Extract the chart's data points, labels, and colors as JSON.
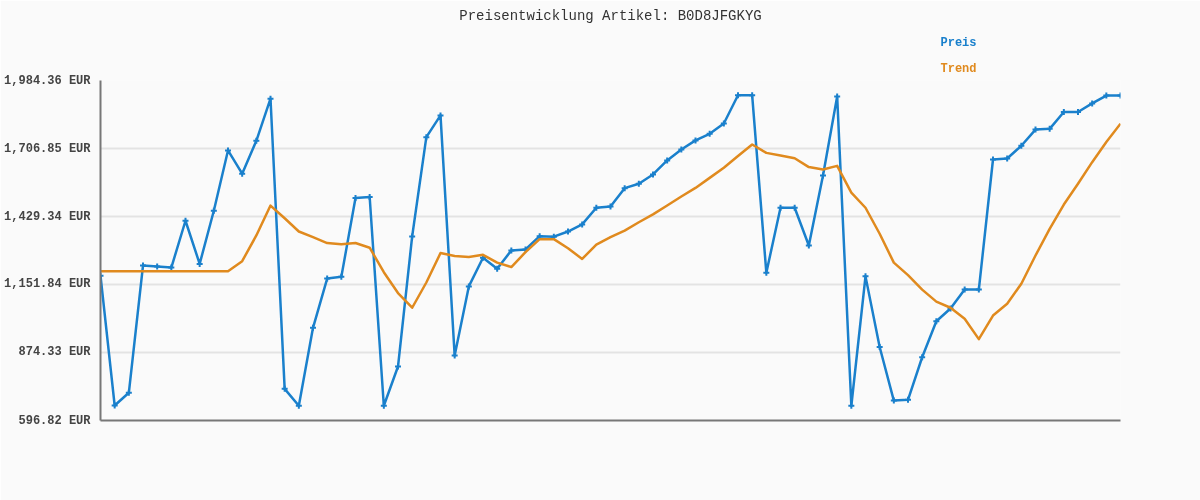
{
  "chart_data": {
    "type": "line",
    "title": "Preisentwicklung Artikel: B0D8JFGKYG",
    "categories": [
      null,
      null,
      null,
      null,
      null,
      null,
      null,
      null,
      null,
      null,
      null,
      null,
      null,
      null,
      null,
      null,
      null,
      null,
      null,
      null,
      null,
      null,
      null,
      null,
      null,
      null,
      null,
      null,
      null,
      null,
      null,
      null,
      null,
      null,
      null,
      null,
      null,
      null,
      null,
      null,
      null,
      null,
      null,
      null,
      null,
      null,
      null,
      null,
      null,
      null,
      null,
      null,
      null,
      null,
      null,
      null,
      null,
      null,
      null,
      null,
      null,
      null,
      null,
      null,
      null,
      null,
      null,
      null,
      null,
      null,
      null,
      null,
      null
    ],
    "series": [
      {
        "name": "Preis",
        "color": "#1a80cc",
        "marker": "cross",
        "values": [
          1188,
          658,
          710,
          1229,
          1225,
          1221,
          1412,
          1236,
          1453,
          1699,
          1604,
          1738,
          1910,
          726,
          657,
          975,
          1176,
          1183,
          1505,
          1509,
          657,
          817,
          1348,
          1753,
          1842,
          862,
          1144,
          1261,
          1216,
          1291,
          1295,
          1349,
          1347,
          1368,
          1397,
          1465,
          1470,
          1545,
          1563,
          1601,
          1658,
          1703,
          1740,
          1767,
          1809,
          1924,
          1924,
          1200,
          1465,
          1465,
          1311,
          1597,
          1919,
          657,
          1185,
          897,
          678,
          681,
          855,
          1002,
          1054,
          1131,
          1131,
          1662,
          1666,
          1718,
          1784,
          1787,
          1856,
          1856,
          1891,
          1923,
          1923
        ]
      },
      {
        "name": "Trend",
        "color": "#e08a1e",
        "marker": "none",
        "values": [
          1206,
          1206,
          1206,
          1206,
          1206,
          1206,
          1206,
          1206,
          1206,
          1206,
          1247,
          1352,
          1474,
          1422,
          1368,
          1345,
          1321,
          1316,
          1321,
          1302,
          1202,
          1117,
          1057,
          1160,
          1280,
          1268,
          1264,
          1273,
          1241,
          1223,
          1284,
          1337,
          1337,
          1300,
          1256,
          1315,
          1345,
          1372,
          1406,
          1438,
          1474,
          1511,
          1546,
          1587,
          1628,
          1676,
          1723,
          1689,
          1678,
          1667,
          1631,
          1621,
          1636,
          1527,
          1465,
          1359,
          1241,
          1190,
          1131,
          1082,
          1057,
          1012,
          929,
          1025,
          1073,
          1155,
          1270,
          1379,
          1478,
          1563,
          1651,
          1733,
          1808
        ]
      }
    ],
    "ylim": [
      596.82,
      1984.36
    ],
    "yticks": [
      {
        "value": 596.82,
        "label": "596.82 EUR"
      },
      {
        "value": 874.33,
        "label": "874.33 EUR"
      },
      {
        "value": 1151.84,
        "label": "1,151.84 EUR"
      },
      {
        "value": 1429.34,
        "label": "1,429.34 EUR"
      },
      {
        "value": 1706.85,
        "label": "1,706.85 EUR"
      },
      {
        "value": 1984.36,
        "label": "1,984.36 EUR"
      }
    ],
    "grid": "y",
    "line_style": "solid"
  }
}
